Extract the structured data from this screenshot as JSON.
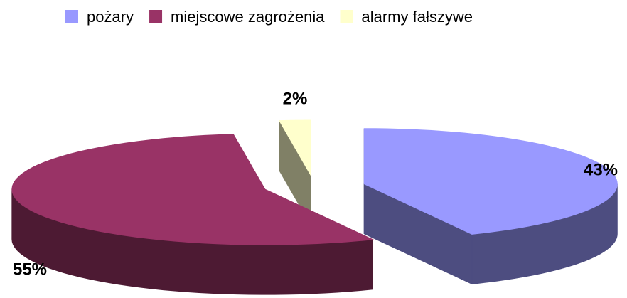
{
  "chart_data": {
    "type": "pie",
    "categories": [
      "pożary",
      "miejscowe zagrożenia",
      "alarmy fałszywe"
    ],
    "values": [
      43,
      55,
      2
    ],
    "value_labels": [
      "43%",
      "55%",
      "2%"
    ],
    "colors": [
      "#9999ff",
      "#993366",
      "#ffffcc"
    ],
    "legend": "top"
  }
}
